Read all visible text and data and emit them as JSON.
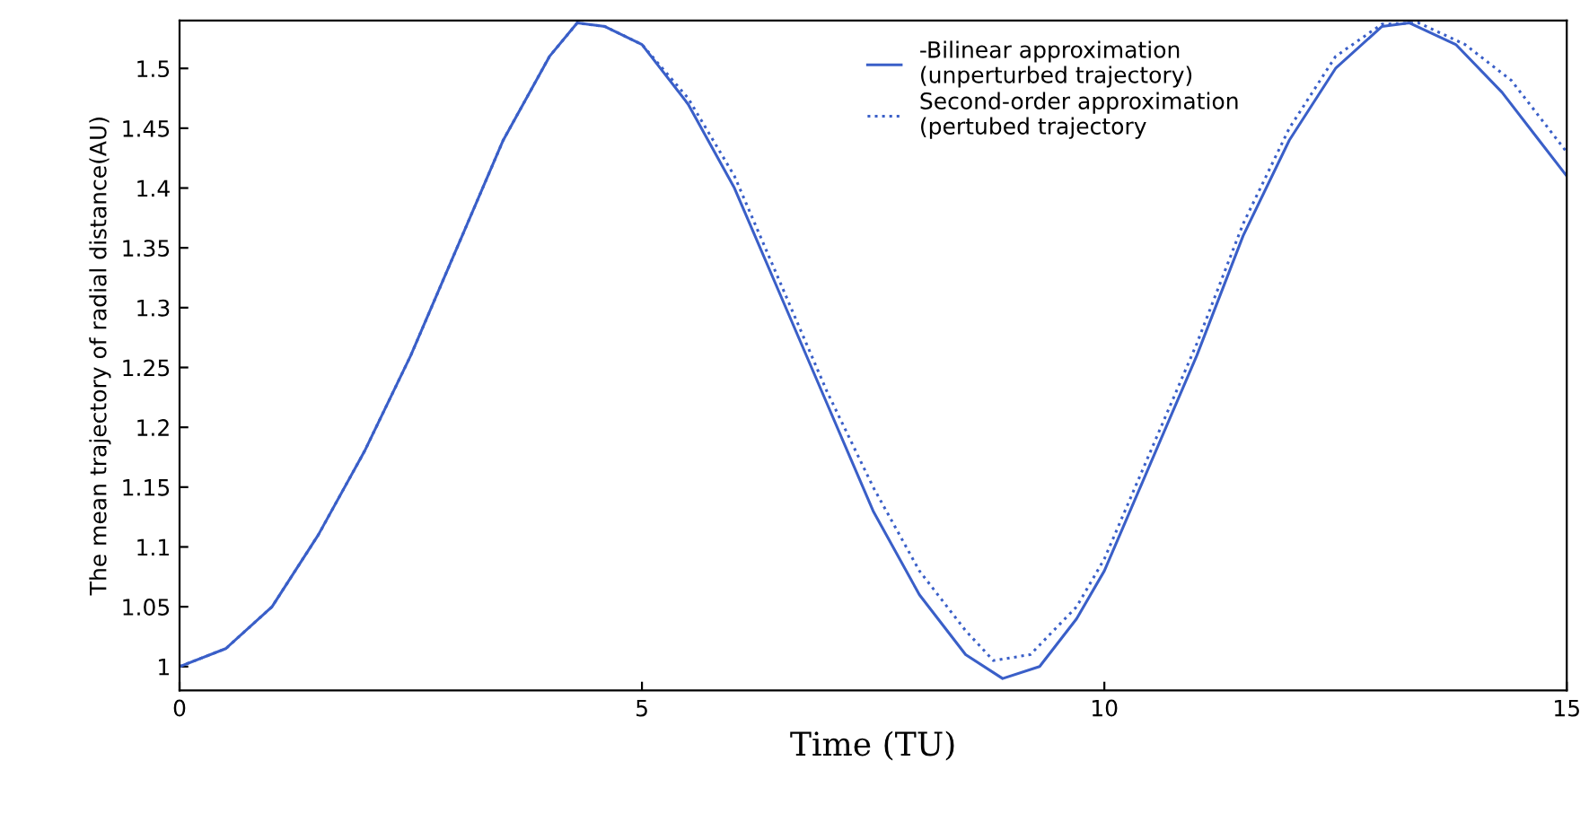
{
  "chart_data": {
    "type": "line",
    "xlabel": "Time (TU)",
    "ylabel": "The mean trajectory of radial distance(AU)",
    "xlim": [
      0,
      15
    ],
    "ylim": [
      0.98,
      1.54
    ],
    "xticks": [
      0,
      5,
      10,
      15
    ],
    "yticks": [
      1,
      1.05,
      1.1,
      1.15,
      1.2,
      1.25,
      1.3,
      1.35,
      1.4,
      1.45,
      1.5
    ],
    "grid": false,
    "legend": "top",
    "series": [
      {
        "name": "-Bilinear approximation\n(unperturbed trajectory)",
        "color": "#3a5fc8",
        "line_style": "solid",
        "x": [
          0,
          0.5,
          1,
          1.5,
          2,
          2.5,
          3,
          3.5,
          4,
          4.3,
          4.6,
          5,
          5.5,
          6,
          6.5,
          7,
          7.5,
          8,
          8.5,
          8.9,
          9.3,
          9.7,
          10,
          10.5,
          11,
          11.5,
          12,
          12.5,
          13,
          13.3,
          13.8,
          14.3,
          14.7,
          15
        ],
        "values": [
          1.0,
          1.015,
          1.05,
          1.11,
          1.18,
          1.26,
          1.35,
          1.44,
          1.51,
          1.538,
          1.535,
          1.52,
          1.47,
          1.4,
          1.31,
          1.22,
          1.13,
          1.06,
          1.01,
          0.99,
          1.0,
          1.04,
          1.08,
          1.17,
          1.26,
          1.36,
          1.44,
          1.5,
          1.535,
          1.538,
          1.52,
          1.48,
          1.44,
          1.41
        ]
      },
      {
        "name": "Second-order approximation\n(pertubed trajectory",
        "color": "#3a5fc8",
        "line_style": "dotted",
        "x": [
          0,
          0.5,
          1,
          1.5,
          2,
          2.5,
          3,
          3.5,
          4,
          4.3,
          4.6,
          5,
          5.5,
          6,
          6.5,
          7,
          7.5,
          8,
          8.5,
          8.8,
          9.2,
          9.7,
          10,
          10.5,
          11,
          11.5,
          12,
          12.5,
          13,
          13.4,
          13.9,
          14.4,
          14.7,
          15
        ],
        "values": [
          1.0,
          1.015,
          1.05,
          1.11,
          1.18,
          1.26,
          1.35,
          1.44,
          1.51,
          1.538,
          1.535,
          1.52,
          1.475,
          1.41,
          1.32,
          1.23,
          1.15,
          1.08,
          1.03,
          1.005,
          1.01,
          1.05,
          1.09,
          1.18,
          1.27,
          1.37,
          1.45,
          1.51,
          1.537,
          1.538,
          1.52,
          1.49,
          1.46,
          1.43
        ]
      }
    ]
  }
}
